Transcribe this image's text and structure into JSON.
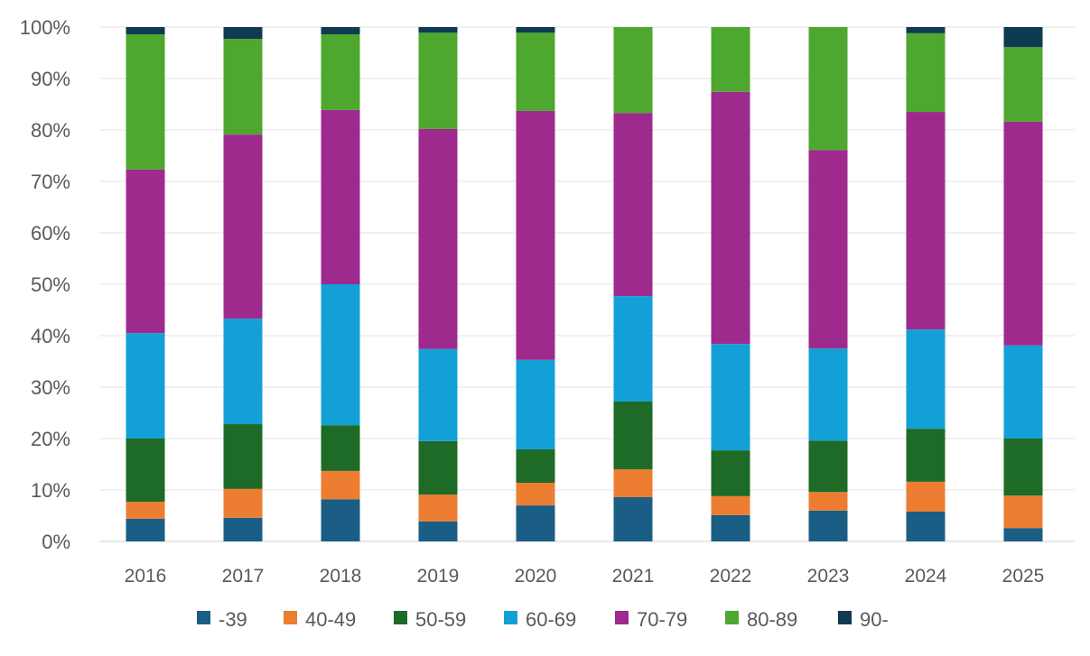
{
  "chart_data": {
    "type": "bar",
    "stacked": true,
    "percent": true,
    "title": "",
    "xlabel": "",
    "ylabel": "",
    "ylim": [
      0,
      100
    ],
    "yticks": [
      "0%",
      "10%",
      "20%",
      "30%",
      "40%",
      "50%",
      "60%",
      "70%",
      "80%",
      "90%",
      "100%"
    ],
    "grid": true,
    "legend_position": "bottom",
    "categories": [
      "2016",
      "2017",
      "2018",
      "2019",
      "2020",
      "2021",
      "2022",
      "2023",
      "2024",
      "2025"
    ],
    "series": [
      {
        "name": "-39",
        "color": "#1a5e85",
        "values": [
          4.4,
          4.6,
          8.2,
          3.9,
          7.0,
          8.6,
          5.1,
          6.0,
          5.8,
          2.6
        ]
      },
      {
        "name": "40-49",
        "color": "#ed7d31",
        "values": [
          3.3,
          5.6,
          5.5,
          5.2,
          4.4,
          5.4,
          3.7,
          3.6,
          5.8,
          6.3
        ]
      },
      {
        "name": "50-59",
        "color": "#1d6b26",
        "values": [
          12.3,
          12.6,
          8.9,
          10.4,
          6.5,
          13.2,
          8.9,
          10.0,
          10.3,
          11.1
        ]
      },
      {
        "name": "60-69",
        "color": "#12a0d7",
        "values": [
          20.5,
          20.5,
          27.4,
          17.9,
          17.4,
          20.5,
          20.7,
          17.9,
          19.3,
          18.1
        ]
      },
      {
        "name": "70-79",
        "color": "#9e2a8e",
        "values": [
          31.8,
          35.8,
          33.9,
          42.8,
          48.4,
          35.6,
          49.0,
          38.6,
          42.3,
          43.5
        ]
      },
      {
        "name": "80-89",
        "color": "#4ea72e",
        "values": [
          26.3,
          18.6,
          14.7,
          18.7,
          15.2,
          16.7,
          12.6,
          23.9,
          15.3,
          14.5
        ]
      },
      {
        "name": "90-",
        "color": "#0e3a52",
        "values": [
          1.4,
          2.3,
          1.4,
          1.1,
          1.1,
          0,
          0,
          0,
          1.2,
          3.9
        ]
      }
    ]
  }
}
